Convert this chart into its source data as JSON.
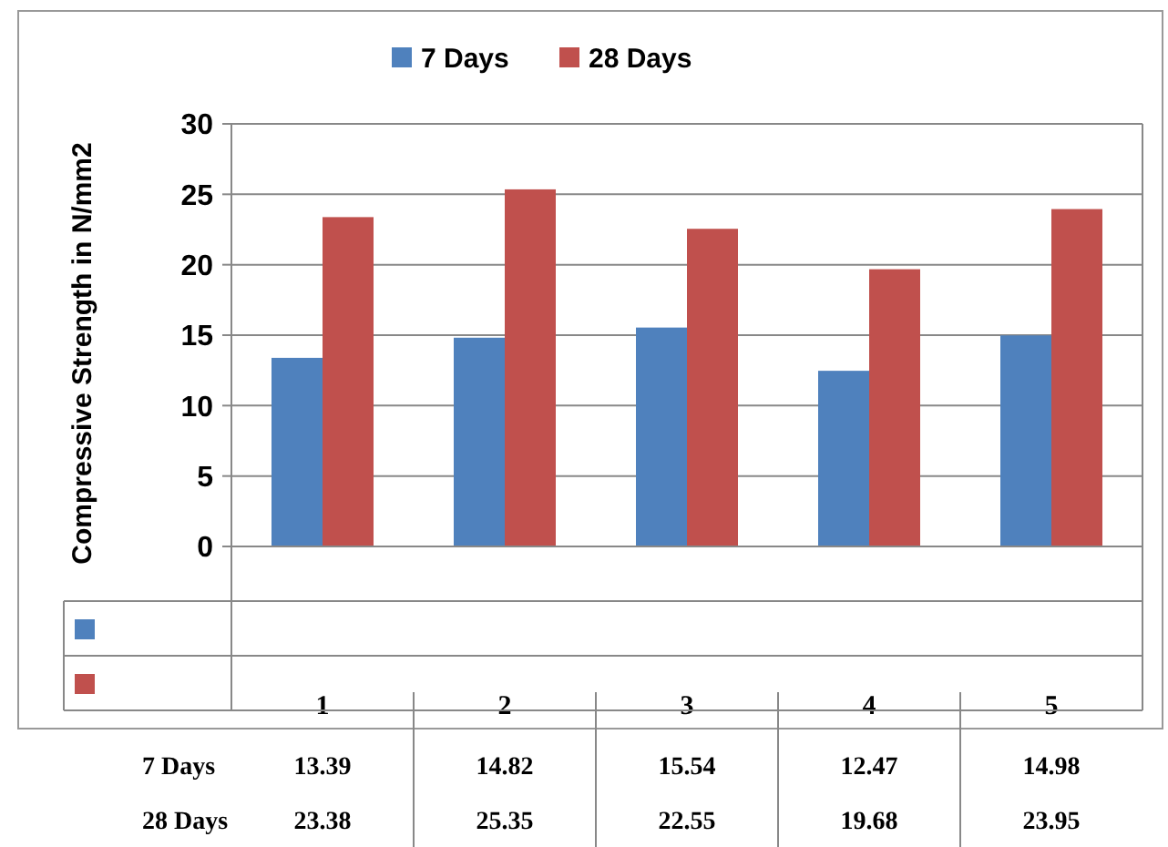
{
  "chart_data": {
    "type": "bar",
    "ylabel": "Compressive Strength in N/mm2",
    "categories": [
      "1",
      "2",
      "3",
      "4",
      "5"
    ],
    "series": [
      {
        "name": "7 Days",
        "color": "#4f81bd",
        "values": [
          13.39,
          14.82,
          15.54,
          12.47,
          14.98
        ]
      },
      {
        "name": "28 Days",
        "color": "#c0504d",
        "values": [
          23.38,
          25.35,
          22.55,
          19.68,
          23.95
        ]
      }
    ],
    "ylim": [
      0,
      30
    ],
    "yticks": [
      0,
      5,
      10,
      15,
      20,
      25,
      30
    ],
    "grid": "y",
    "legend": "top",
    "data_labels": true
  }
}
